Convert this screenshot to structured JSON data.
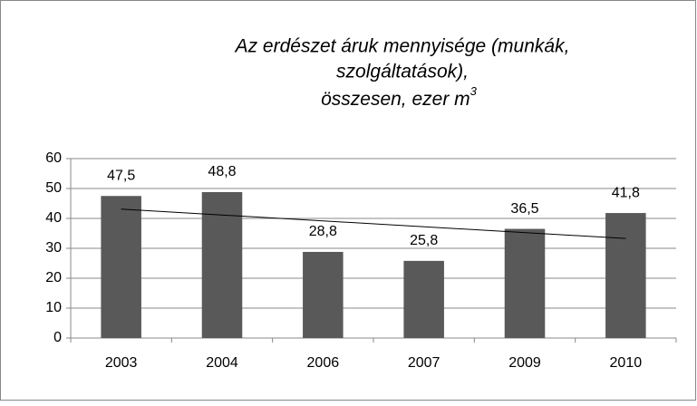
{
  "chart_data": {
    "type": "bar",
    "title": [
      "Az erdészet áruk mennyisége (munkák,",
      "szolgáltatások),",
      "összesen, ezer m"
    ],
    "title_superscript": "3",
    "categories": [
      "2003",
      "2004",
      "2006",
      "2007",
      "2009",
      "2010"
    ],
    "values": [
      47.5,
      48.8,
      28.8,
      25.8,
      36.5,
      41.8
    ],
    "value_labels": [
      "47,5",
      "48,8",
      "28,8",
      "25,8",
      "36,5",
      "41,8"
    ],
    "color": "#595959",
    "trendline": {
      "start": 43.1,
      "end": 33.3,
      "color": "#000000"
    },
    "ylim": [
      0,
      60
    ],
    "yticks": [
      0,
      10,
      20,
      30,
      40,
      50,
      60
    ],
    "grid": true
  }
}
